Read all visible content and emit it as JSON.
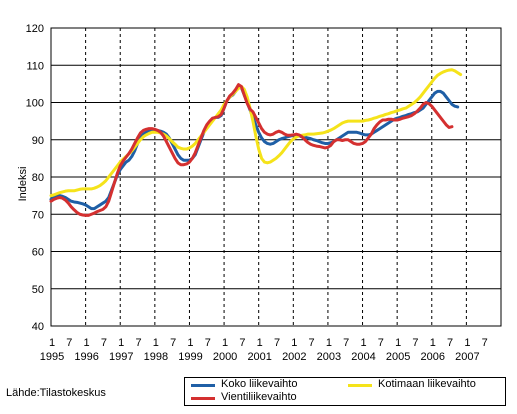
{
  "source_text": "Lähde:Tilastokeskus",
  "chart_data": {
    "type": "line",
    "ylabel": "Indeksi",
    "ylim": [
      40,
      120
    ],
    "yticks": [
      40,
      50,
      60,
      70,
      80,
      90,
      100,
      110,
      120
    ],
    "grid": "horizontal solid, vertical dashed at January",
    "x_start": "1995-01",
    "month_tick_labels": [
      "1",
      "7"
    ],
    "year_labels": [
      "1995",
      "1996",
      "1997",
      "1998",
      "1999",
      "2000",
      "2001",
      "2002",
      "2003",
      "2004",
      "2005",
      "2006",
      "2007"
    ],
    "legend_position": "bottom-right",
    "series": [
      {
        "name": "Koko liikevaihto",
        "color": "#1f5fa6",
        "values": [
          74,
          74.5,
          74.8,
          75,
          74.8,
          74.5,
          74,
          73.5,
          73.3,
          73.2,
          73,
          72.8,
          72.5,
          72,
          71.5,
          71.5,
          72,
          72.5,
          73,
          73.5,
          74.5,
          76.5,
          78.5,
          80.5,
          82,
          83,
          84,
          84.5,
          85.5,
          87,
          89,
          90.5,
          91.5,
          92,
          92.3,
          92.5,
          92.5,
          92.5,
          92.3,
          92,
          91.5,
          90.5,
          89,
          87.5,
          86,
          85,
          84.5,
          84.5,
          84.5,
          85,
          86,
          88,
          90,
          92,
          93.5,
          94.5,
          95.5,
          96,
          96,
          96.5,
          98.5,
          100.5,
          101.5,
          102,
          103,
          104.5,
          104,
          102,
          100,
          98,
          96,
          94,
          92,
          90.5,
          89.5,
          89,
          88.8,
          89,
          89.5,
          90,
          90.3,
          90.5,
          90.8,
          91,
          91.2,
          91.2,
          91,
          90.8,
          90.7,
          90.5,
          90.3,
          90,
          89.8,
          89.5,
          89.2,
          89,
          89,
          89.2,
          89.5,
          90,
          90.5,
          91,
          91.5,
          92,
          92,
          92,
          92,
          91.8,
          91.5,
          91.3,
          91.3,
          91.5,
          92,
          92.5,
          93,
          93.5,
          94,
          94.5,
          95,
          95.5,
          95.8,
          96,
          96.3,
          96.5,
          96.8,
          97,
          97.3,
          97.5,
          98,
          98.5,
          99.5,
          100.5,
          101.5,
          102.5,
          103,
          103,
          102.5,
          101.5,
          100.5,
          99.5,
          99,
          98.8
        ]
      },
      {
        "name": "Kotimaan liikevaihto",
        "color": "#f5e31a",
        "values": [
          75,
          75.2,
          75.5,
          75.8,
          76,
          76.2,
          76.3,
          76.3,
          76.3,
          76.5,
          76.7,
          76.8,
          76.8,
          76.8,
          76.8,
          77,
          77.3,
          77.7,
          78.3,
          79,
          80,
          81,
          82,
          83,
          84,
          84.8,
          85.5,
          86.2,
          87,
          88,
          89,
          90,
          90.8,
          91.3,
          91.7,
          92,
          92,
          92,
          91.8,
          91.5,
          91,
          90.3,
          89.5,
          88.8,
          88,
          87.7,
          87.5,
          87.5,
          87.8,
          88.3,
          89,
          90,
          91,
          92,
          93,
          94,
          95,
          96,
          97,
          98,
          99.5,
          100.5,
          101.5,
          102.2,
          103,
          103.8,
          104.3,
          103.5,
          101.5,
          98.5,
          95,
          91,
          87.5,
          85,
          84,
          83.8,
          84,
          84.5,
          85,
          85.7,
          86.5,
          87.5,
          88.5,
          89.5,
          90.2,
          90.7,
          91,
          91.2,
          91.3,
          91.5,
          91.5,
          91.5,
          91.6,
          91.7,
          91.8,
          92,
          92.3,
          92.6,
          93,
          93.5,
          94,
          94.5,
          94.8,
          95,
          95,
          95,
          95,
          95,
          95,
          95.2,
          95.3,
          95.5,
          95.8,
          96,
          96.3,
          96.5,
          96.8,
          97,
          97.3,
          97.5,
          97.8,
          98,
          98.3,
          98.5,
          99,
          99.5,
          100,
          100.7,
          101.5,
          102.5,
          103.5,
          104.5,
          105.5,
          106.5,
          107.3,
          107.8,
          108.2,
          108.5,
          108.7,
          108.8,
          108.5,
          108,
          107.5
        ]
      },
      {
        "name": "Vientiliikevaihto",
        "color": "#d43030",
        "values": [
          73.5,
          74,
          74.3,
          74.5,
          74.3,
          73.8,
          73,
          72,
          71.2,
          70.5,
          70,
          69.8,
          69.7,
          69.7,
          70,
          70.3,
          70.7,
          71,
          71.3,
          72,
          73.5,
          76,
          78.5,
          81,
          83,
          84.3,
          85.3,
          86.3,
          87.5,
          89,
          90.5,
          91.8,
          92.5,
          92.8,
          93,
          93,
          92.8,
          92.5,
          92,
          91,
          89.5,
          88,
          86.5,
          85,
          83.8,
          83.3,
          83.3,
          83.5,
          84,
          85,
          86.5,
          88.5,
          90.5,
          92.5,
          94,
          95,
          95.8,
          96,
          96.2,
          96.8,
          98.5,
          100.5,
          101.8,
          102.5,
          103.5,
          104.8,
          104.3,
          102,
          99.8,
          98.2,
          97.5,
          96,
          94.5,
          93,
          92,
          91.5,
          91.3,
          91.5,
          92,
          92.3,
          92,
          91.5,
          91.2,
          91.2,
          91.3,
          91.5,
          91.3,
          90.8,
          90,
          89.3,
          88.8,
          88.5,
          88.3,
          88.2,
          88,
          87.8,
          88,
          88.5,
          89.5,
          90,
          90,
          89.8,
          90,
          90,
          89.5,
          89,
          88.8,
          88.8,
          89,
          89.5,
          90.5,
          91.5,
          93,
          94,
          94.8,
          95.3,
          95.3,
          95.5,
          95.5,
          95.3,
          95.3,
          95.5,
          95.8,
          96,
          96.2,
          96.5,
          97,
          97.7,
          98.5,
          99.5,
          100,
          99.7,
          99,
          98,
          97,
          96,
          95,
          94,
          93.3,
          93.5
        ]
      }
    ]
  }
}
